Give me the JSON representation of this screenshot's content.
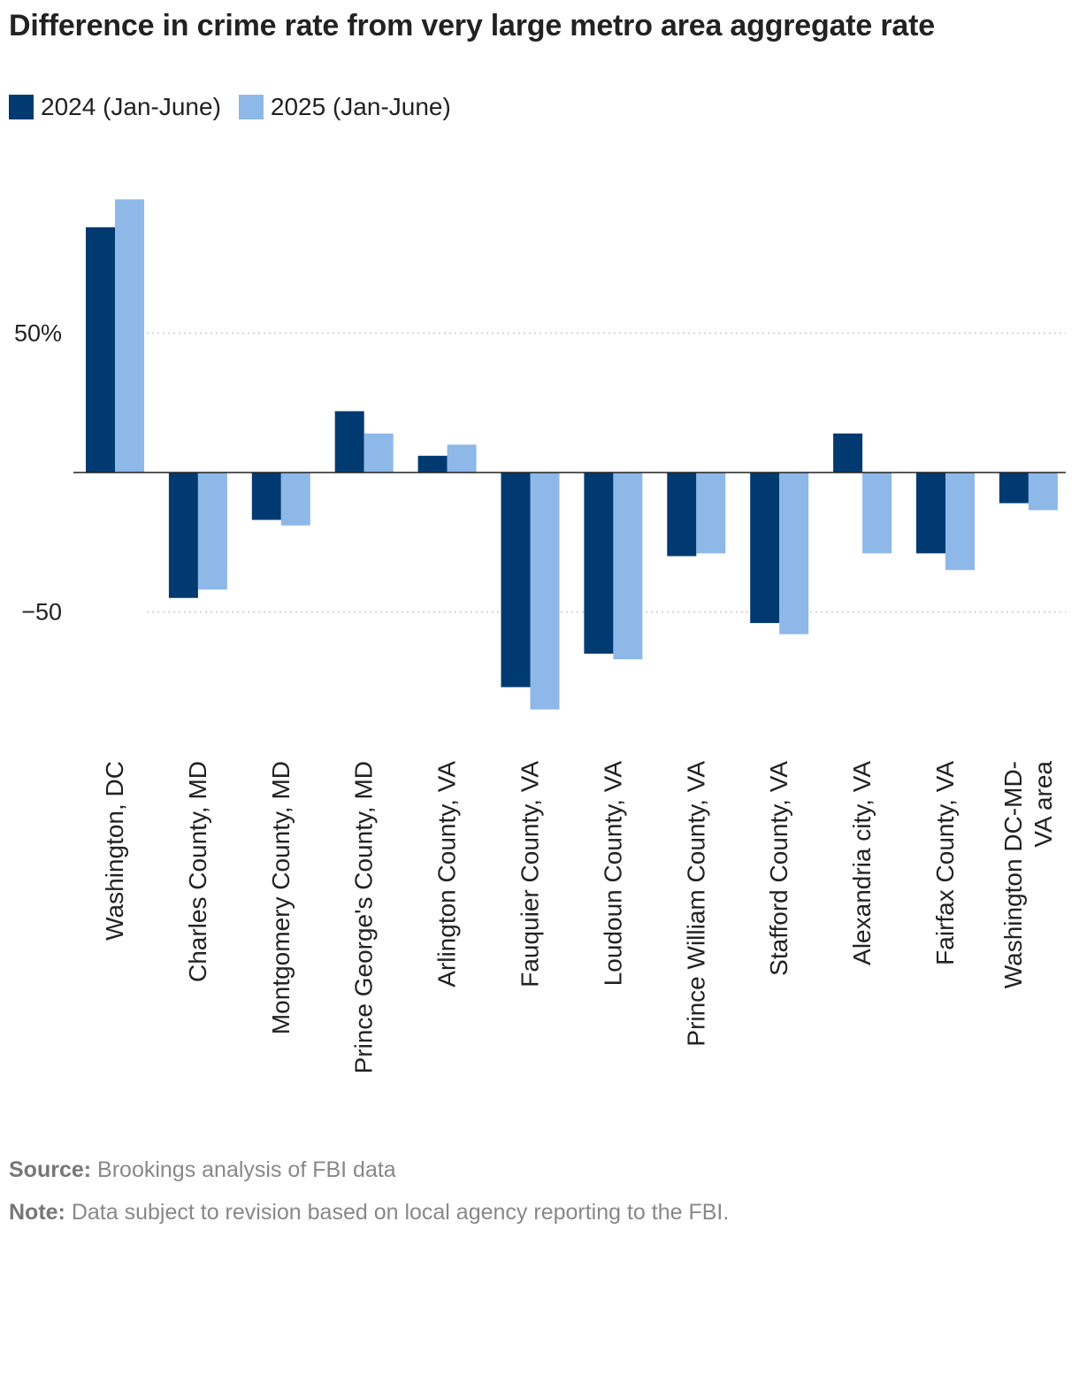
{
  "chart_data": {
    "type": "bar",
    "title": "Difference in crime rate from very large metro area aggregate rate",
    "xlabel": "",
    "ylabel": "",
    "ylim": [
      -85,
      105
    ],
    "y_ticks": [
      {
        "value": 50,
        "label": "50%"
      },
      {
        "value": -50,
        "label": "−50"
      }
    ],
    "grid": true,
    "legend_position": "top-left",
    "categories": [
      [
        "Washington, DC"
      ],
      [
        "Charles County, MD"
      ],
      [
        "Montgomery County, MD"
      ],
      [
        "Prince George's County, MD"
      ],
      [
        "Arlington County, VA"
      ],
      [
        "Fauquier County, VA"
      ],
      [
        "Loudoun County, VA"
      ],
      [
        "Prince William County, VA"
      ],
      [
        "Stafford County, VA"
      ],
      [
        "Alexandria city, VA"
      ],
      [
        "Fairfax County, VA"
      ],
      [
        "Washington DC-MD-",
        "VA area"
      ]
    ],
    "series": [
      {
        "name": "2024 (Jan-June)",
        "color": "#003A70",
        "values": [
          88,
          -45,
          -17,
          22,
          6,
          -77,
          -65,
          -30,
          -54,
          14,
          -29,
          -11
        ]
      },
      {
        "name": "2025 (Jan-June)",
        "color": "#8DB8E8",
        "values": [
          98,
          -42,
          -19,
          14,
          10,
          -85,
          -67,
          -29,
          -58,
          -29,
          -35,
          -13.5
        ]
      }
    ]
  },
  "footer": {
    "source_label": "Source:",
    "source_text": " Brookings analysis of FBI data",
    "note_label": "Note:",
    "note_text": " Data subject to revision based on local agency reporting to the FBI."
  }
}
